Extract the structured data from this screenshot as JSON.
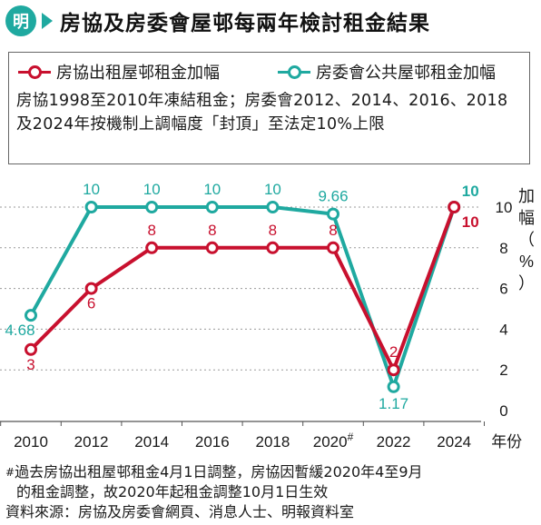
{
  "header": {
    "logo": "明",
    "title": "房協及房委會屋邨每兩年檢討租金結果"
  },
  "legend": {
    "ha": "房協出租屋邨租金加幅",
    "hs": "房委會公共屋邨租金加幅"
  },
  "note": "房協1998至2010年凍結租金；房委會2012、2014、2016、2018及2024年按機制上調幅度「封頂」至法定10%上限",
  "colors": {
    "ha": "#c8102e",
    "hs": "#1fa9a0"
  },
  "chart_data": {
    "type": "line",
    "x": [
      "2010",
      "2012",
      "2014",
      "2016",
      "2018",
      "2020#",
      "2022",
      "2024"
    ],
    "x_axis_label": "年份",
    "y_axis_label": "加幅（%）",
    "ylim": [
      0,
      10
    ],
    "y_ticks": [
      "0",
      "2",
      "4",
      "6",
      "8",
      "10"
    ],
    "grid": "horizontal dashed",
    "series": [
      {
        "name": "房協出租屋邨租金加幅",
        "color": "#c8102e",
        "values": [
          3,
          6,
          8,
          8,
          8,
          8,
          2,
          10
        ],
        "labels": [
          "3",
          "6",
          "8",
          "8",
          "8",
          "8",
          "2",
          "10"
        ]
      },
      {
        "name": "房委會公共屋邨租金加幅",
        "color": "#1fa9a0",
        "values": [
          4.68,
          10,
          10,
          10,
          10,
          9.66,
          1.17,
          10
        ],
        "labels": [
          "4.68",
          "10",
          "10",
          "10",
          "10",
          "9.66",
          "1.17",
          "10"
        ]
      }
    ]
  },
  "footnote": {
    "mark": "#",
    "line1": "過去房協出租屋邨租金4月1日調整，房協因暫緩2020年4至9月",
    "line2": "的租金調整，故2020年起租金調整10月1日生效",
    "source": "資料來源：房協及房委會網頁、消息人士、明報資料室"
  }
}
